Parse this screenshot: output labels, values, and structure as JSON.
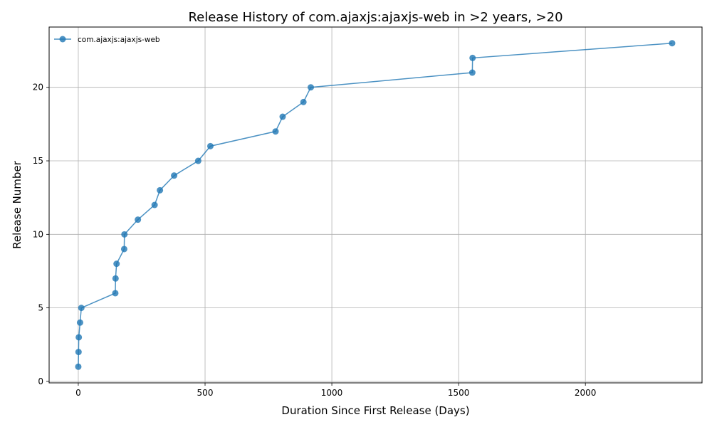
{
  "chart_data": {
    "type": "line",
    "title": "Release History of com.ajaxjs:ajaxjs-web in >2 years, >20",
    "xlabel": "Duration Since First Release (Days)",
    "ylabel": "Release Number",
    "xlim": [
      -115,
      2460
    ],
    "ylim": [
      -0.1,
      24.1
    ],
    "xticks": [
      0,
      500,
      1000,
      1500,
      2000
    ],
    "yticks": [
      0,
      5,
      10,
      15,
      20
    ],
    "grid": true,
    "legend_position": "top-left",
    "series_color": "#1f77b4",
    "series": [
      {
        "name": "com.ajaxjs:ajaxjs-web",
        "x": [
          0,
          1,
          2,
          7,
          12,
          146,
          147,
          151,
          181,
          182,
          235,
          301,
          322,
          378,
          473,
          521,
          778,
          806,
          888,
          917,
          1554,
          1555,
          2342
        ],
        "y": [
          1,
          2,
          3,
          4,
          5,
          6,
          7,
          8,
          9,
          10,
          11,
          12,
          13,
          14,
          15,
          16,
          17,
          18,
          19,
          20,
          21,
          22,
          23
        ]
      }
    ]
  }
}
